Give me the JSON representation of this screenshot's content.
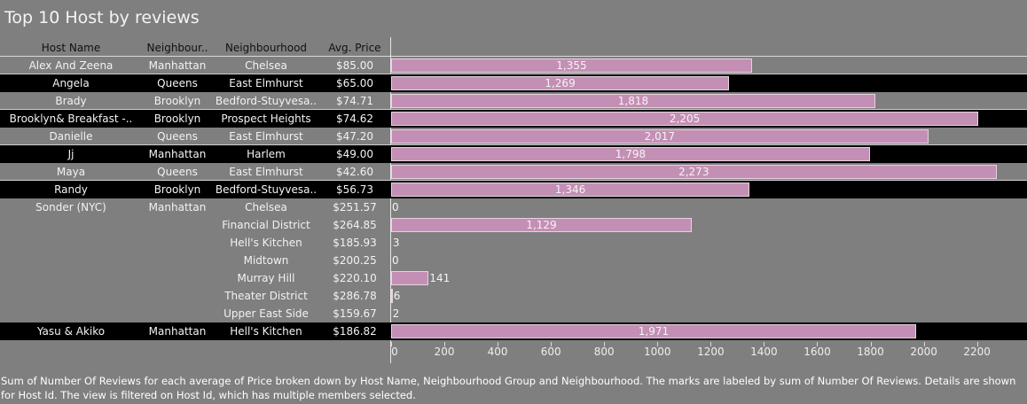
{
  "title": "Top 10 Host by reviews",
  "columns": {
    "host": "Host Name",
    "group": "Neighbour..",
    "neighbourhood": "Neighbourhood",
    "price": "Avg. Price"
  },
  "caption": "Sum of Number Of Reviews for each average of Price broken down by Host Name, Neighbourhood Group and Neighbourhood.  The marks are labeled by sum of Number Of Reviews.  Details are shown for Host Id. The view is filtered on Host Id, which has multiple members selected.",
  "colors": {
    "background": "#7f7f7f",
    "band": "#000000",
    "bar": "#c48fb5"
  },
  "chart_data": {
    "type": "bar",
    "orientation": "horizontal",
    "title": "Top 10 Host by reviews",
    "measure": "Sum of Number Of Reviews",
    "xlim": [
      0,
      2330
    ],
    "ticks": [
      0,
      200,
      400,
      600,
      800,
      1000,
      1200,
      1400,
      1600,
      1800,
      2000,
      2200
    ],
    "rows": [
      {
        "host": "Alex And Zeena",
        "group": "Manhattan",
        "neighbourhood": "Chelsea",
        "price": "$85.00",
        "value": 1355,
        "label": "1,355",
        "band": "light"
      },
      {
        "host": "Angela",
        "group": "Queens",
        "neighbourhood": "East Elmhurst",
        "price": "$65.00",
        "value": 1269,
        "label": "1,269",
        "band": "dark"
      },
      {
        "host": "Brady",
        "group": "Brooklyn",
        "neighbourhood": "Bedford-Stuyvesa..",
        "price": "$74.71",
        "value": 1818,
        "label": "1,818",
        "band": "light"
      },
      {
        "host": "Brooklyn&  Breakfast  -..",
        "group": "Brooklyn",
        "neighbourhood": "Prospect Heights",
        "price": "$74.62",
        "value": 2205,
        "label": "2,205",
        "band": "dark"
      },
      {
        "host": "Danielle",
        "group": "Queens",
        "neighbourhood": "East Elmhurst",
        "price": "$47.20",
        "value": 2017,
        "label": "2,017",
        "band": "light"
      },
      {
        "host": "Jj",
        "group": "Manhattan",
        "neighbourhood": "Harlem",
        "price": "$49.00",
        "value": 1798,
        "label": "1,798",
        "band": "dark"
      },
      {
        "host": "Maya",
        "group": "Queens",
        "neighbourhood": "East Elmhurst",
        "price": "$42.60",
        "value": 2273,
        "label": "2,273",
        "band": "light"
      },
      {
        "host": "Randy",
        "group": "Brooklyn",
        "neighbourhood": "Bedford-Stuyvesa..",
        "price": "$56.73",
        "value": 1346,
        "label": "1,346",
        "band": "dark"
      },
      {
        "host": "Sonder (NYC)",
        "group": "Manhattan",
        "neighbourhood": "Chelsea",
        "price": "$251.57",
        "value": 0,
        "label": "0",
        "band": "none"
      },
      {
        "host": "",
        "group": "",
        "neighbourhood": "Financial District",
        "price": "$264.85",
        "value": 1129,
        "label": "1,129",
        "band": "none"
      },
      {
        "host": "",
        "group": "",
        "neighbourhood": "Hell's Kitchen",
        "price": "$185.93",
        "value": 3,
        "label": "3",
        "band": "none"
      },
      {
        "host": "",
        "group": "",
        "neighbourhood": "Midtown",
        "price": "$200.25",
        "value": 0,
        "label": "0",
        "band": "none"
      },
      {
        "host": "",
        "group": "",
        "neighbourhood": "Murray Hill",
        "price": "$220.10",
        "value": 141,
        "label": "141",
        "band": "none"
      },
      {
        "host": "",
        "group": "",
        "neighbourhood": "Theater District",
        "price": "$286.78",
        "value": 6,
        "label": "6",
        "band": "none"
      },
      {
        "host": "",
        "group": "",
        "neighbourhood": "Upper East Side",
        "price": "$159.67",
        "value": 2,
        "label": "2",
        "band": "none"
      },
      {
        "host": "Yasu & Akiko",
        "group": "Manhattan",
        "neighbourhood": "Hell's Kitchen",
        "price": "$186.82",
        "value": 1971,
        "label": "1,971",
        "band": "dark"
      }
    ]
  }
}
